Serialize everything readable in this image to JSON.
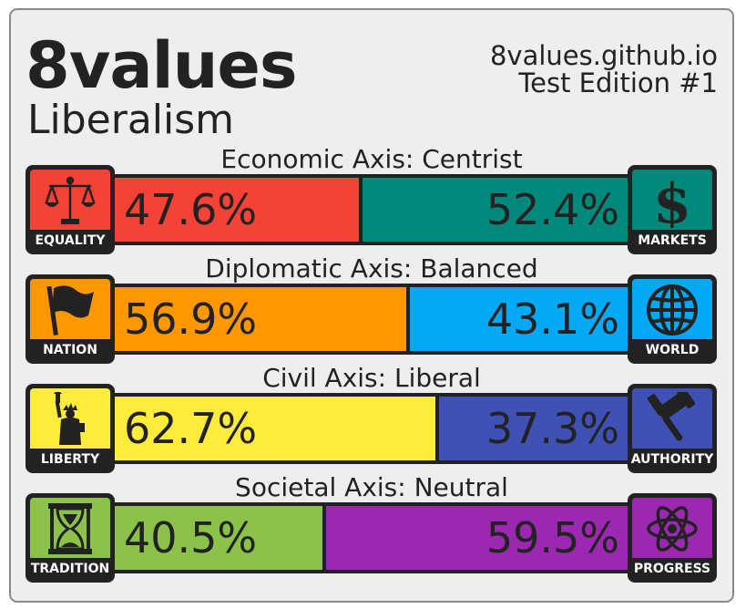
{
  "header": {
    "title": "8values",
    "ideology": "Liberalism",
    "site": "8values.github.io",
    "edition": "Test Edition #1"
  },
  "colors": {
    "equality": "#f44336",
    "markets": "#00897b",
    "nation": "#ff9800",
    "world": "#03a9f4",
    "liberty": "#ffeb3b",
    "authority": "#3f51b5",
    "tradition": "#8bc34a",
    "progress": "#9c27b0",
    "frame": "#222222"
  },
  "axes": [
    {
      "label": "Economic Axis: Centrist",
      "left": {
        "caption": "EQUALITY",
        "value": 47.6,
        "display": "47.6%",
        "icon": "scales-icon"
      },
      "right": {
        "caption": "MARKETS",
        "value": 52.4,
        "display": "52.4%",
        "icon": "dollar-icon"
      }
    },
    {
      "label": "Diplomatic Axis: Balanced",
      "left": {
        "caption": "NATION",
        "value": 56.9,
        "display": "56.9%",
        "icon": "flag-icon"
      },
      "right": {
        "caption": "WORLD",
        "value": 43.1,
        "display": "43.1%",
        "icon": "globe-icon"
      }
    },
    {
      "label": "Civil Axis: Liberal",
      "left": {
        "caption": "LIBERTY",
        "value": 62.7,
        "display": "62.7%",
        "icon": "statue-of-liberty-icon"
      },
      "right": {
        "caption": "AUTHORITY",
        "value": 37.3,
        "display": "37.3%",
        "icon": "gavel-icon"
      }
    },
    {
      "label": "Societal Axis: Neutral",
      "left": {
        "caption": "TRADITION",
        "value": 40.5,
        "display": "40.5%",
        "icon": "hourglass-icon"
      },
      "right": {
        "caption": "PROGRESS",
        "value": 59.5,
        "display": "59.5%",
        "icon": "atom-icon"
      }
    }
  ]
}
